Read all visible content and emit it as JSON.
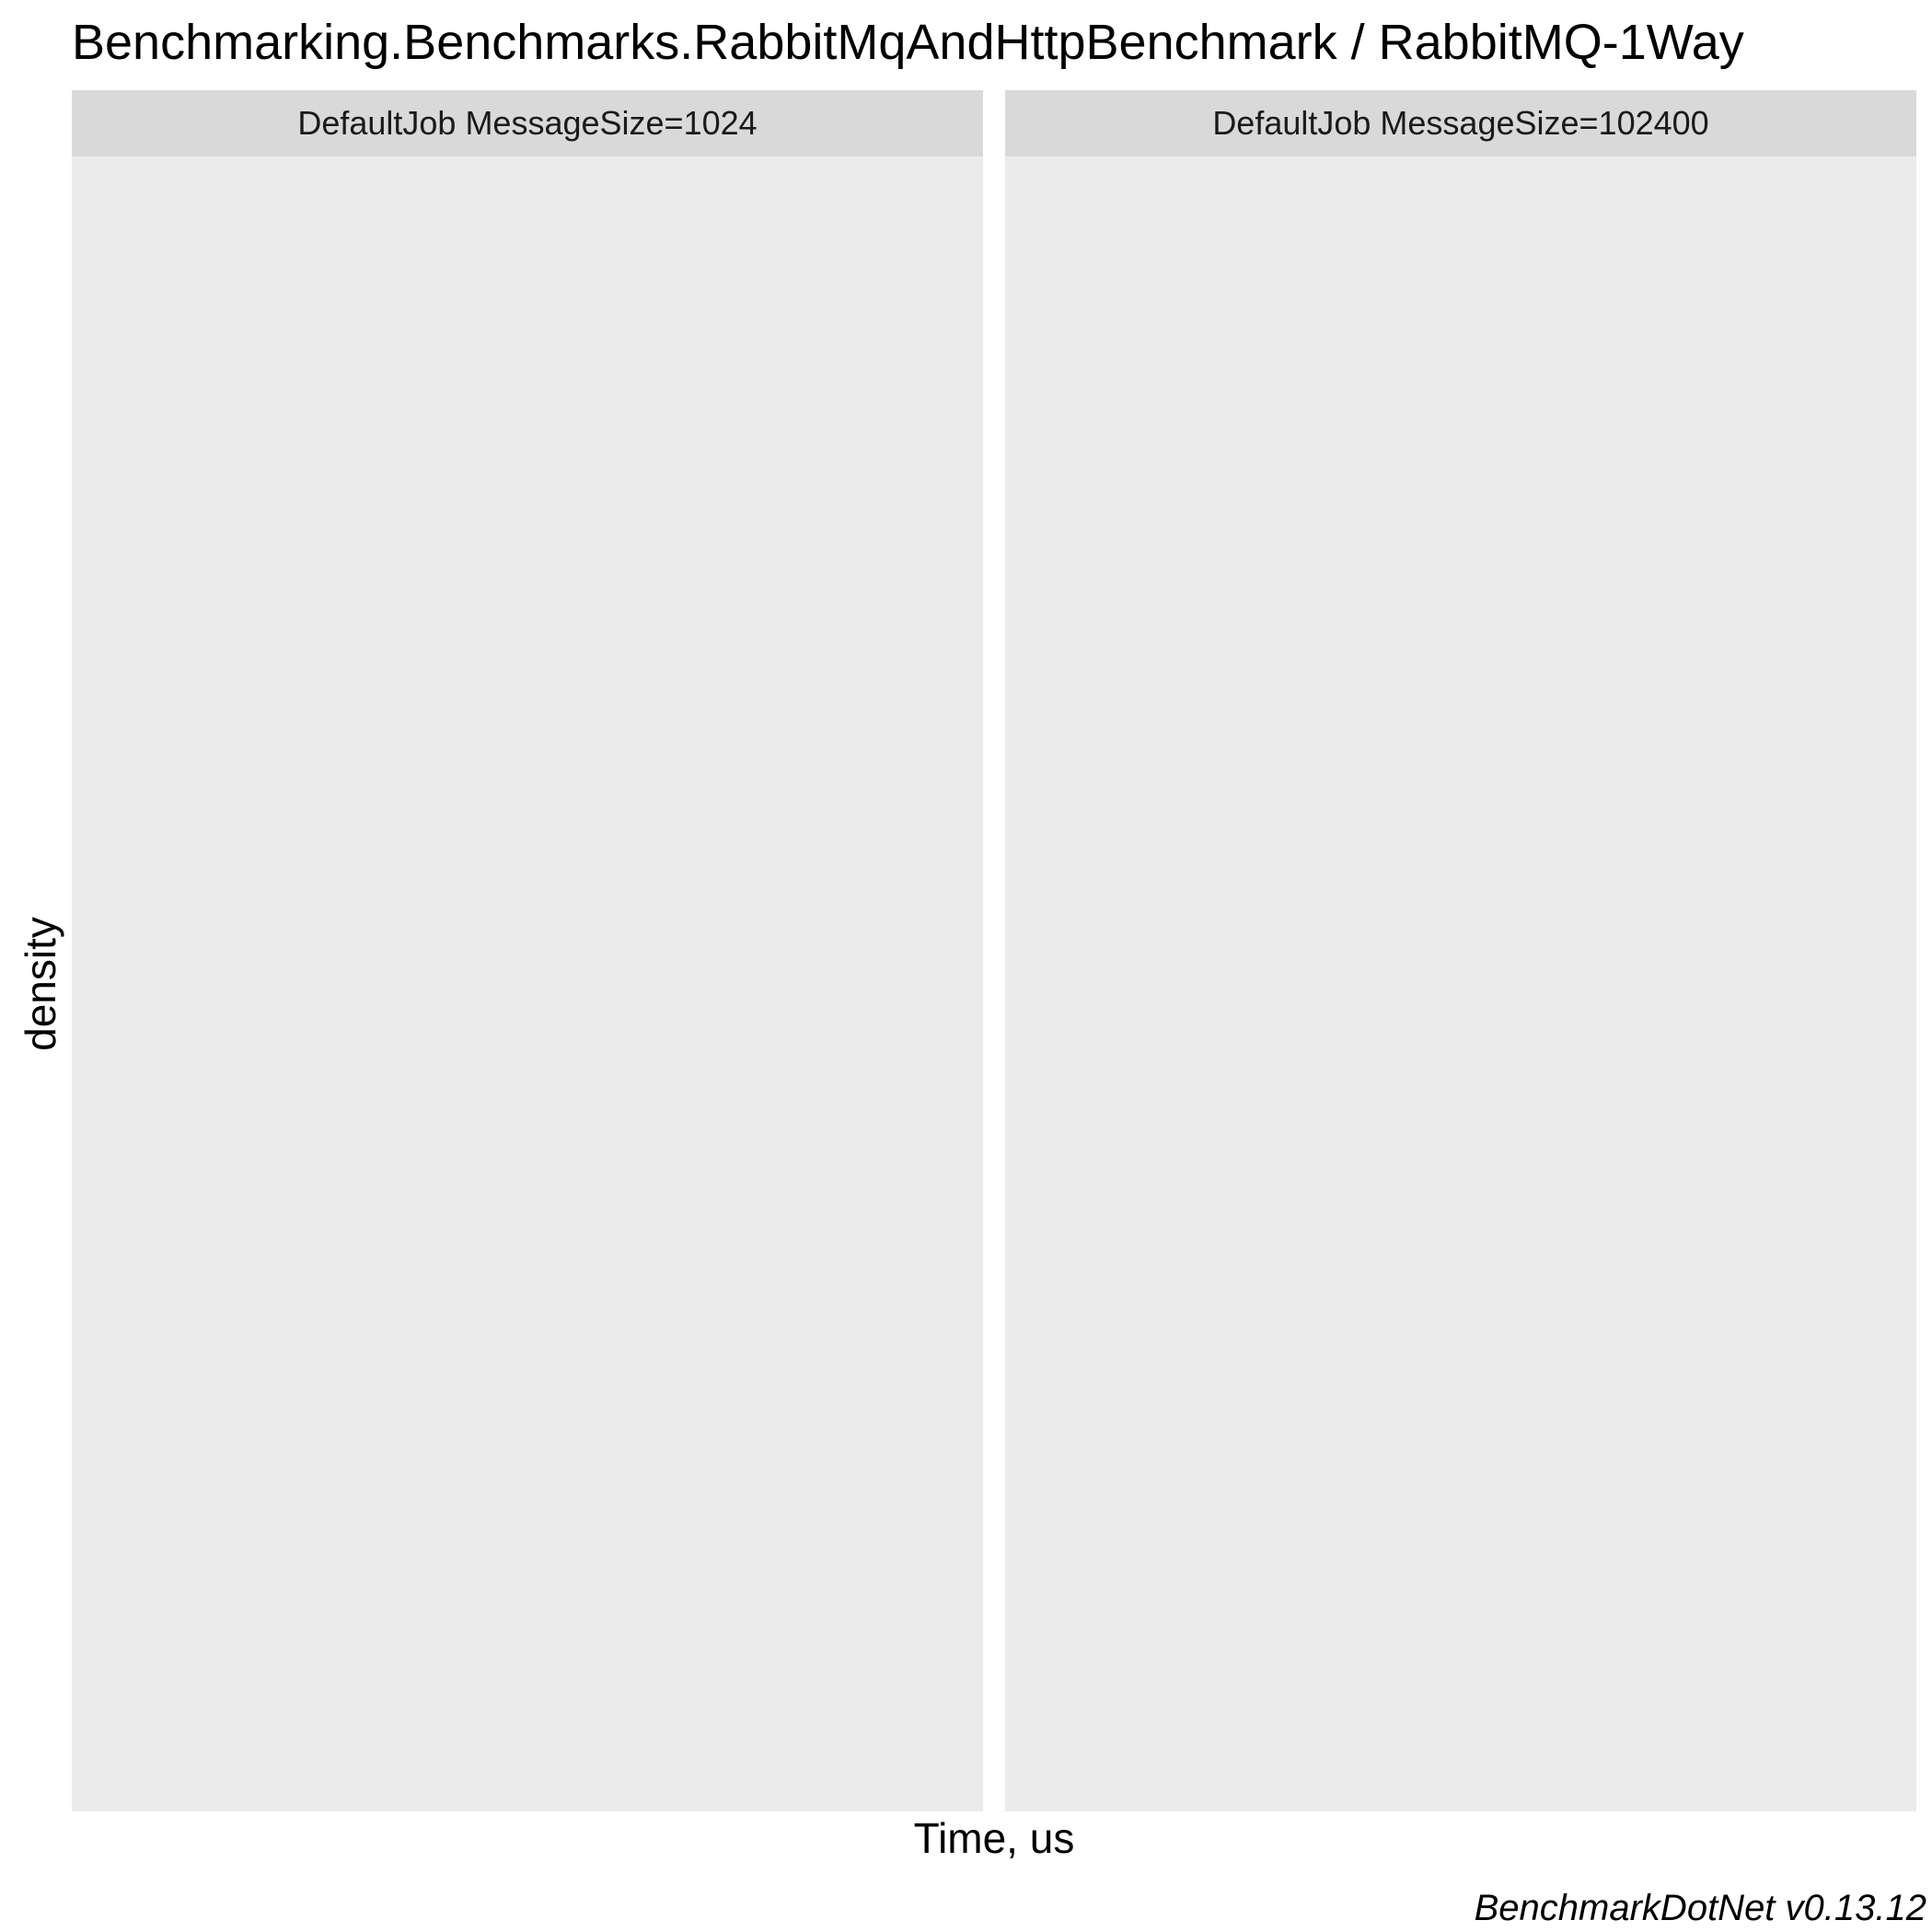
{
  "chart_data": {
    "type": "area",
    "title": "Benchmarking.Benchmarks.RabbitMqAndHttpBenchmark / RabbitMQ-1Way",
    "xlabel": "Time, us",
    "ylabel": "density",
    "caption": "BenchmarkDotNet v0.13.12",
    "grid": false,
    "facets": [
      {
        "label": "DefaultJob MessageSize=1024",
        "series": []
      },
      {
        "label": "DefaultJob MessageSize=102400",
        "series": []
      }
    ],
    "colors": {
      "panel_background": "#ebebeb",
      "strip_background": "#d9d9d9"
    }
  }
}
